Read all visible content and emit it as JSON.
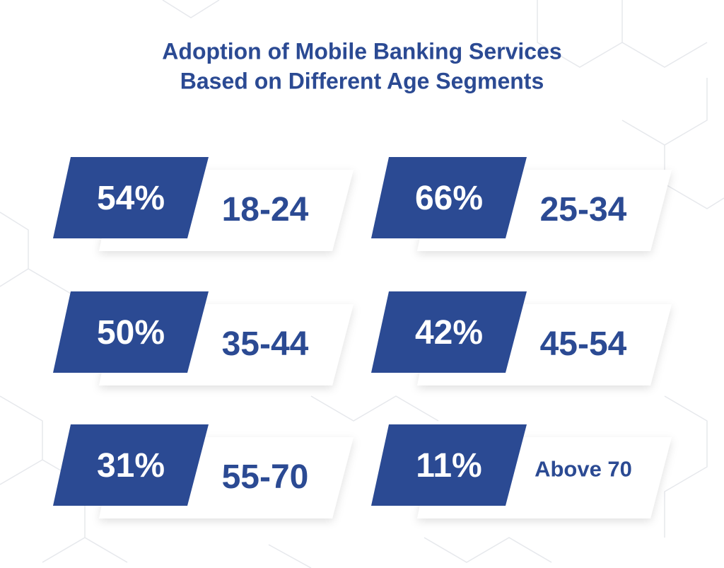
{
  "header": {
    "title_lines": [
      "Adoption of Mobile Banking Services",
      "Based on Different Age Segments"
    ]
  },
  "cards": [
    {
      "value": "54%",
      "label": "18-24"
    },
    {
      "value": "66%",
      "label": "25-34"
    },
    {
      "value": "50%",
      "label": "35-44"
    },
    {
      "value": "42%",
      "label": "45-54"
    },
    {
      "value": "31%",
      "label": "55-70"
    },
    {
      "value": "11%",
      "label": "Above 70"
    }
  ]
}
